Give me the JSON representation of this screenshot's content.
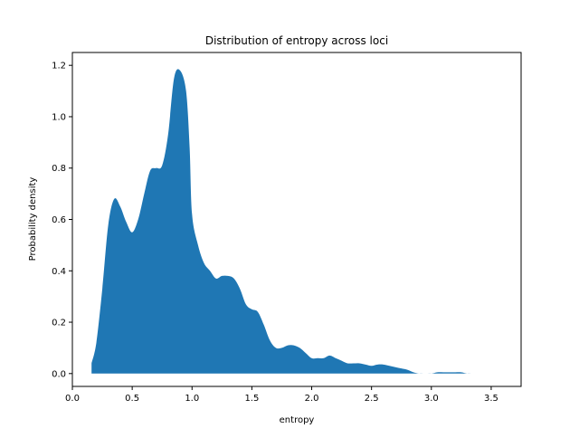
{
  "chart_data": {
    "type": "area",
    "title": "Distribution of entropy across loci",
    "xlabel": "entropy",
    "ylabel": "Probability density",
    "xlim": [
      0.0,
      3.75
    ],
    "ylim": [
      -0.05,
      1.25
    ],
    "xticks": [
      0.0,
      0.5,
      1.0,
      1.5,
      2.0,
      2.5,
      3.0,
      3.5
    ],
    "xtick_labels": [
      "0.0",
      "0.5",
      "1.0",
      "1.5",
      "2.0",
      "2.5",
      "3.0",
      "3.5"
    ],
    "yticks": [
      0.0,
      0.2,
      0.4,
      0.6,
      0.8,
      1.0,
      1.2
    ],
    "ytick_labels": [
      "0.0",
      "0.2",
      "0.4",
      "0.6",
      "0.8",
      "1.0",
      "1.2"
    ],
    "grid": false,
    "color": "#1f77b4",
    "series": [
      {
        "x": [
          0.16,
          0.2,
          0.25,
          0.3,
          0.35,
          0.4,
          0.45,
          0.5,
          0.55,
          0.6,
          0.65,
          0.7,
          0.75,
          0.8,
          0.85,
          0.9,
          0.95,
          0.98,
          1.0,
          1.05,
          1.1,
          1.15,
          1.2,
          1.25,
          1.3,
          1.35,
          1.4,
          1.45,
          1.5,
          1.55,
          1.6,
          1.65,
          1.7,
          1.75,
          1.8,
          1.85,
          1.9,
          1.95,
          2.0,
          2.05,
          2.1,
          2.15,
          2.2,
          2.25,
          2.3,
          2.35,
          2.4,
          2.45,
          2.5,
          2.55,
          2.6,
          2.65,
          2.7,
          2.75,
          2.8,
          2.85,
          2.9,
          2.95,
          3.0,
          3.05,
          3.1,
          3.15,
          3.2,
          3.25,
          3.3,
          3.35,
          3.4,
          3.45,
          3.5,
          3.55,
          3.58
        ],
        "y": [
          0.04,
          0.12,
          0.33,
          0.58,
          0.68,
          0.65,
          0.59,
          0.55,
          0.6,
          0.7,
          0.79,
          0.8,
          0.81,
          0.93,
          1.15,
          1.18,
          1.1,
          0.88,
          0.62,
          0.5,
          0.43,
          0.4,
          0.37,
          0.38,
          0.38,
          0.37,
          0.33,
          0.27,
          0.25,
          0.24,
          0.19,
          0.13,
          0.1,
          0.1,
          0.11,
          0.11,
          0.1,
          0.08,
          0.06,
          0.06,
          0.06,
          0.07,
          0.06,
          0.05,
          0.04,
          0.04,
          0.04,
          0.035,
          0.03,
          0.035,
          0.035,
          0.03,
          0.025,
          0.02,
          0.015,
          0.005,
          0.0,
          0.0,
          0.0,
          0.005,
          0.005,
          0.005,
          0.005,
          0.005,
          0.0,
          0.0,
          0.0,
          0.0,
          0.0,
          0.0,
          0.0
        ]
      }
    ]
  }
}
